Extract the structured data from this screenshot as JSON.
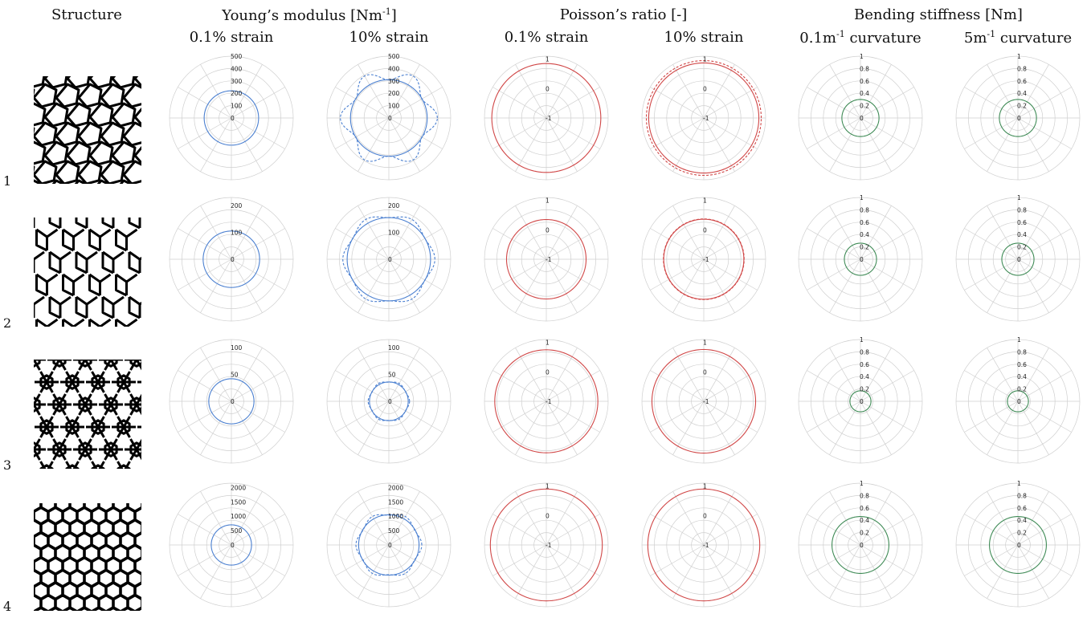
{
  "headers": {
    "structure": "Structure",
    "youngs": "Young’s modulus [Nm",
    "youngs_sup": "-1",
    "youngs_end": "]",
    "poisson": "Poisson’s ratio [-]",
    "bending": "Bending stiffness [Nm]"
  },
  "subheaders": {
    "strain_low": "0.1% strain",
    "strain_high": "10% strain",
    "curv_low_pre": "0.1m",
    "curv_low_sup": "-1",
    "curv_low_post": " curvature",
    "curv_high_pre": "5m",
    "curv_high_sup": "-1",
    "curv_high_post": " curvature"
  },
  "row_labels": [
    "1",
    "2",
    "3",
    "4"
  ],
  "colors": {
    "young": "#4a7fd0",
    "poisson": "#d04646",
    "bending": "#3e8a55",
    "grid": "#cfcfcf",
    "structure": "#000000"
  },
  "chart_data": [
    {
      "type": "polar",
      "row": 1,
      "quantity": "Young's modulus",
      "condition": "0.1% strain",
      "rmax": 500,
      "ticks": [
        "0",
        "100",
        "200",
        "300",
        "400",
        "500"
      ],
      "series": [
        {
          "style": "solid",
          "radius": 220
        }
      ]
    },
    {
      "type": "polar",
      "row": 1,
      "quantity": "Young's modulus",
      "condition": "10% strain",
      "rmax": 500,
      "ticks": [
        "0",
        "100",
        "200",
        "300",
        "400",
        "500"
      ],
      "series": [
        {
          "style": "solid",
          "radius": 310
        },
        {
          "style": "dashed",
          "radius": 350,
          "modulation": 0.12,
          "lobes": 6
        }
      ]
    },
    {
      "type": "polar",
      "row": 1,
      "quantity": "Poisson's ratio",
      "condition": "0.1% strain",
      "rmin": -1,
      "rmax": 1.1,
      "ticks": [
        "-1",
        "0",
        "1"
      ],
      "series": [
        {
          "style": "solid",
          "radius": 0.85
        }
      ]
    },
    {
      "type": "polar",
      "row": 1,
      "quantity": "Poisson's ratio",
      "condition": "10% strain",
      "rmin": -1,
      "rmax": 1.1,
      "ticks": [
        "-1",
        "0",
        "1"
      ],
      "series": [
        {
          "style": "solid",
          "radius": 0.87
        },
        {
          "style": "dashed",
          "radius": 0.95
        }
      ]
    },
    {
      "type": "polar",
      "row": 1,
      "quantity": "Bending stiffness",
      "condition": "0.1m-1 curvature",
      "rmax": 1,
      "ticks": [
        "0",
        "0.2",
        "0.4",
        "0.6",
        "0.8",
        "1"
      ],
      "series": [
        {
          "style": "solid",
          "radius": 0.3
        }
      ]
    },
    {
      "type": "polar",
      "row": 1,
      "quantity": "Bending stiffness",
      "condition": "5m-1 curvature",
      "rmax": 1,
      "ticks": [
        "0",
        "0.2",
        "0.4",
        "0.6",
        "0.8",
        "1"
      ],
      "series": [
        {
          "style": "solid",
          "radius": 0.3
        }
      ]
    },
    {
      "type": "polar",
      "row": 2,
      "quantity": "Young's modulus",
      "condition": "0.1% strain",
      "rmax": 230,
      "ticks": [
        "0",
        "100",
        "200"
      ],
      "series": [
        {
          "style": "solid",
          "radius": 105
        }
      ]
    },
    {
      "type": "polar",
      "row": 2,
      "quantity": "Young's modulus",
      "condition": "10% strain",
      "rmax": 230,
      "ticks": [
        "0",
        "100",
        "200"
      ],
      "series": [
        {
          "style": "solid",
          "radius": 155
        },
        {
          "style": "dashed",
          "radius": 163,
          "modulation": 0.05,
          "lobes": 6
        }
      ]
    },
    {
      "type": "polar",
      "row": 2,
      "quantity": "Poisson's ratio",
      "condition": "0.1% strain",
      "rmin": -1,
      "rmax": 1.1,
      "ticks": [
        "-1",
        "0",
        "1"
      ],
      "series": [
        {
          "style": "solid",
          "radius": 0.35
        }
      ]
    },
    {
      "type": "polar",
      "row": 2,
      "quantity": "Poisson's ratio",
      "condition": "10% strain",
      "rmin": -1,
      "rmax": 1.1,
      "ticks": [
        "-1",
        "0",
        "1"
      ],
      "series": [
        {
          "style": "solid",
          "radius": 0.36
        },
        {
          "style": "dashed",
          "radius": 0.37
        }
      ]
    },
    {
      "type": "polar",
      "row": 2,
      "quantity": "Bending stiffness",
      "condition": "0.1m-1 curvature",
      "rmax": 1,
      "ticks": [
        "0",
        "0.2",
        "0.4",
        "0.6",
        "0.8",
        "1"
      ],
      "series": [
        {
          "style": "solid",
          "radius": 0.26
        }
      ]
    },
    {
      "type": "polar",
      "row": 2,
      "quantity": "Bending stiffness",
      "condition": "5m-1 curvature",
      "rmax": 1,
      "ticks": [
        "0",
        "0.2",
        "0.4",
        "0.6",
        "0.8",
        "1"
      ],
      "series": [
        {
          "style": "solid",
          "radius": 0.26
        }
      ]
    },
    {
      "type": "polar",
      "row": 3,
      "quantity": "Young's modulus",
      "condition": "0.1% strain",
      "rmax": 115,
      "ticks": [
        "0",
        "50",
        "100"
      ],
      "series": [
        {
          "style": "solid",
          "radius": 42
        }
      ]
    },
    {
      "type": "polar",
      "row": 3,
      "quantity": "Young's modulus",
      "condition": "10% strain",
      "rmax": 115,
      "ticks": [
        "0",
        "50",
        "100"
      ],
      "series": [
        {
          "style": "solid",
          "radius": 36
        },
        {
          "style": "dashed",
          "radius": 37,
          "modulation": 0.04,
          "lobes": 6
        }
      ]
    },
    {
      "type": "polar",
      "row": 3,
      "quantity": "Poisson's ratio",
      "condition": "0.1% strain",
      "rmin": -1,
      "rmax": 1.1,
      "ticks": [
        "-1",
        "0",
        "1"
      ],
      "series": [
        {
          "style": "solid",
          "radius": 0.75
        }
      ]
    },
    {
      "type": "polar",
      "row": 3,
      "quantity": "Poisson's ratio",
      "condition": "10% strain",
      "rmin": -1,
      "rmax": 1.1,
      "ticks": [
        "-1",
        "0",
        "1"
      ],
      "series": [
        {
          "style": "solid",
          "radius": 0.76
        }
      ]
    },
    {
      "type": "polar",
      "row": 3,
      "quantity": "Bending stiffness",
      "condition": "0.1m-1 curvature",
      "rmax": 1,
      "ticks": [
        "0",
        "0.2",
        "0.4",
        "0.6",
        "0.8",
        "1"
      ],
      "series": [
        {
          "style": "solid",
          "radius": 0.17
        }
      ]
    },
    {
      "type": "polar",
      "row": 3,
      "quantity": "Bending stiffness",
      "condition": "5m-1 curvature",
      "rmax": 1,
      "ticks": [
        "0",
        "0.2",
        "0.4",
        "0.6",
        "0.8",
        "1"
      ],
      "series": [
        {
          "style": "solid",
          "radius": 0.17
        }
      ]
    },
    {
      "type": "polar",
      "row": 4,
      "quantity": "Young's modulus",
      "condition": "0.1% strain",
      "rmax": 2150,
      "ticks": [
        "0",
        "500",
        "1000",
        "1500",
        "2000"
      ],
      "series": [
        {
          "style": "solid",
          "radius": 700
        }
      ]
    },
    {
      "type": "polar",
      "row": 4,
      "quantity": "Young's modulus",
      "condition": "10% strain",
      "rmax": 2150,
      "ticks": [
        "0",
        "500",
        "1000",
        "1500",
        "2000"
      ],
      "series": [
        {
          "style": "solid",
          "radius": 1050
        },
        {
          "style": "dashed",
          "radius": 1090,
          "modulation": 0.05,
          "lobes": 6
        }
      ]
    },
    {
      "type": "polar",
      "row": 4,
      "quantity": "Poisson's ratio",
      "condition": "0.1% strain",
      "rmin": -1,
      "rmax": 1.1,
      "ticks": [
        "-1",
        "0",
        "1"
      ],
      "series": [
        {
          "style": "solid",
          "radius": 0.9
        }
      ]
    },
    {
      "type": "polar",
      "row": 4,
      "quantity": "Poisson's ratio",
      "condition": "10% strain",
      "rmin": -1,
      "rmax": 1.1,
      "ticks": [
        "-1",
        "0",
        "1"
      ],
      "series": [
        {
          "style": "solid",
          "radius": 0.9
        }
      ]
    },
    {
      "type": "polar",
      "row": 4,
      "quantity": "Bending stiffness",
      "condition": "0.1m-1 curvature",
      "rmax": 1,
      "ticks": [
        "0",
        "0.2",
        "0.4",
        "0.6",
        "0.8",
        "1"
      ],
      "series": [
        {
          "style": "solid",
          "radius": 0.46
        }
      ]
    },
    {
      "type": "polar",
      "row": 4,
      "quantity": "Bending stiffness",
      "condition": "5m-1 curvature",
      "rmax": 1,
      "ticks": [
        "0",
        "0.2",
        "0.4",
        "0.6",
        "0.8",
        "1"
      ],
      "series": [
        {
          "style": "solid",
          "radius": 0.46
        }
      ]
    }
  ]
}
